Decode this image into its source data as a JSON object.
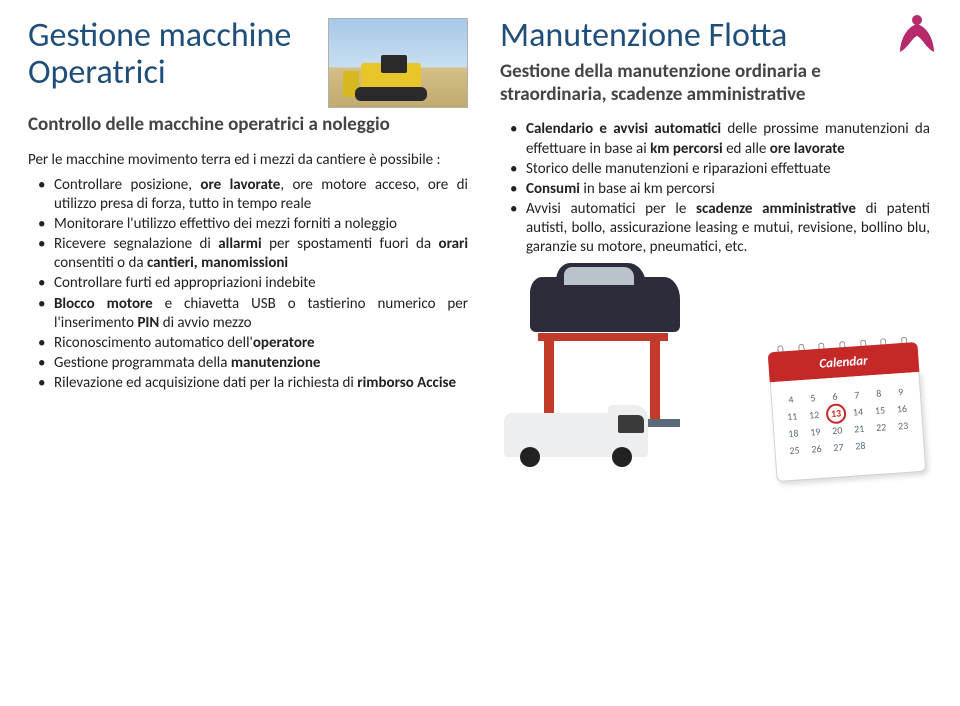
{
  "colors": {
    "title": "#1f4e79",
    "text": "#222222",
    "subtitle": "#444444",
    "logo": "#b62a6b",
    "calendar_header": "#c62828",
    "lift": "#c13a2a",
    "van": "#eceef0",
    "car": "#2c2c3a"
  },
  "typography": {
    "title_fontsize_pt": 26,
    "subtitle_fontsize_pt": 14,
    "body_fontsize_pt": 11,
    "font_family": "Calibri"
  },
  "left": {
    "title": "Gestione macchine Operatrici",
    "subtitle": "Controllo delle macchine operatrici a noleggio",
    "intro": "Per le macchine movimento terra ed i mezzi da cantiere è possibile :",
    "bullets": [
      {
        "pre": "Controllare posizione, ",
        "b": "ore lavorate",
        "post": ", ore motore acceso, ore di utilizzo presa di forza, tutto in tempo reale"
      },
      {
        "pre": "Monitorare l'utilizzo effettivo dei mezzi forniti a noleggio",
        "b": "",
        "post": ""
      },
      {
        "pre": "Ricevere segnalazione di ",
        "b": "allarmi",
        "post": " per spostamenti fuori da ",
        "b2": "orari",
        "post2": " consentiti o da ",
        "b3": "cantieri, manomissioni",
        "post3": ""
      },
      {
        "pre": "Controllare furti ed appropriazioni indebite",
        "b": "",
        "post": ""
      },
      {
        "pre": "",
        "b": "Blocco motore",
        "post": " e chiavetta USB o tastierino numerico per l'inserimento ",
        "b2": "PIN",
        "post2": " di avvio mezzo"
      },
      {
        "pre": "Riconoscimento automatico dell'",
        "b": "operatore",
        "post": ""
      },
      {
        "pre": "Gestione programmata della ",
        "b": "manutenzione",
        "post": ""
      },
      {
        "pre": "Rilevazione ed acquisizione dati per la richiesta di ",
        "b": "rimborso Accise",
        "post": ""
      }
    ]
  },
  "right": {
    "title": "Manutenzione Flotta",
    "subtitle": "Gestione della manutenzione ordinaria e straordinaria, scadenze amministrative",
    "bullets": [
      {
        "pre": "",
        "b": "Calendario e avvisi automatici",
        "post": " delle prossime manutenzioni da effettuare in base ai ",
        "b2": "km percorsi",
        "post2": " ed alle ",
        "b3": "ore lavorate",
        "post3": ""
      },
      {
        "pre": "Storico delle manutenzioni e riparazioni effettuate",
        "b": "",
        "post": ""
      },
      {
        "pre": "",
        "b": "Consumi",
        "post": " in base ai km percorsi"
      },
      {
        "pre": "Avvisi automatici per le ",
        "b": "scadenze amministrative",
        "post": " di patenti autisti, bollo, assicurazione leasing e mutui, revisione, bollino blu, garanzie su motore, pneumatici, etc."
      }
    ],
    "calendar": {
      "label": "Calendar",
      "rows": [
        [
          "",
          "",
          "",
          "",
          "",
          "",
          ""
        ],
        [
          "4",
          "5",
          "6",
          "7",
          "8",
          "9",
          ""
        ],
        [
          "11",
          "12",
          "13",
          "14",
          "15",
          "16",
          ""
        ],
        [
          "18",
          "19",
          "20",
          "21",
          "22",
          "23",
          ""
        ],
        [
          "25",
          "26",
          "27",
          "28",
          "",
          "",
          ""
        ]
      ],
      "circled": "13"
    }
  }
}
